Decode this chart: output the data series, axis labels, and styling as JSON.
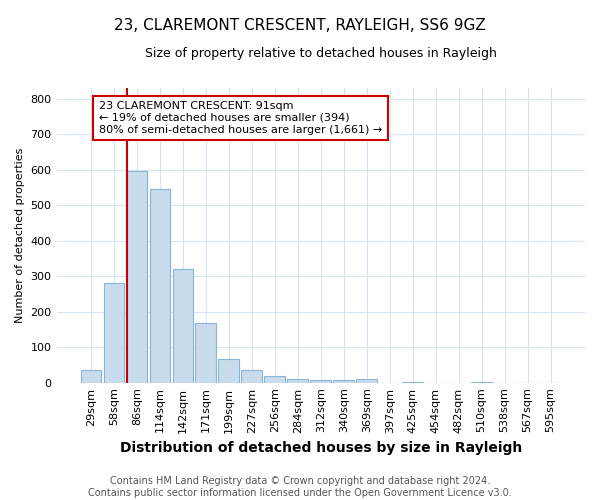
{
  "title": "23, CLAREMONT CRESCENT, RAYLEIGH, SS6 9GZ",
  "subtitle": "Size of property relative to detached houses in Rayleigh",
  "xlabel": "Distribution of detached houses by size in Rayleigh",
  "ylabel": "Number of detached properties",
  "categories": [
    "29sqm",
    "58sqm",
    "86sqm",
    "114sqm",
    "142sqm",
    "171sqm",
    "199sqm",
    "227sqm",
    "256sqm",
    "284sqm",
    "312sqm",
    "340sqm",
    "369sqm",
    "397sqm",
    "425sqm",
    "454sqm",
    "482sqm",
    "510sqm",
    "538sqm",
    "567sqm",
    "595sqm"
  ],
  "values": [
    37,
    280,
    595,
    545,
    320,
    168,
    68,
    37,
    20,
    10,
    8,
    8,
    10,
    0,
    3,
    0,
    0,
    3,
    0,
    0,
    0
  ],
  "bar_color": "#c9dcee",
  "bar_edge_color": "#8ab4d4",
  "vline_x_index": 2,
  "vline_color": "#cc0000",
  "annotation_text": "23 CLAREMONT CRESCENT: 91sqm\n← 19% of detached houses are smaller (394)\n80% of semi-detached houses are larger (1,661) →",
  "annotation_box_facecolor": "#ffffff",
  "annotation_box_edgecolor": "#cc0000",
  "ylim": [
    0,
    830
  ],
  "yticks": [
    0,
    100,
    200,
    300,
    400,
    500,
    600,
    700,
    800
  ],
  "footer": "Contains HM Land Registry data © Crown copyright and database right 2024.\nContains public sector information licensed under the Open Government Licence v3.0.",
  "bg_color": "#ffffff",
  "plot_bg_color": "#ffffff",
  "grid_color": "#d8e4f0",
  "title_fontsize": 11,
  "subtitle_fontsize": 9,
  "xlabel_fontsize": 10,
  "ylabel_fontsize": 8,
  "annotation_fontsize": 8,
  "footer_fontsize": 7
}
